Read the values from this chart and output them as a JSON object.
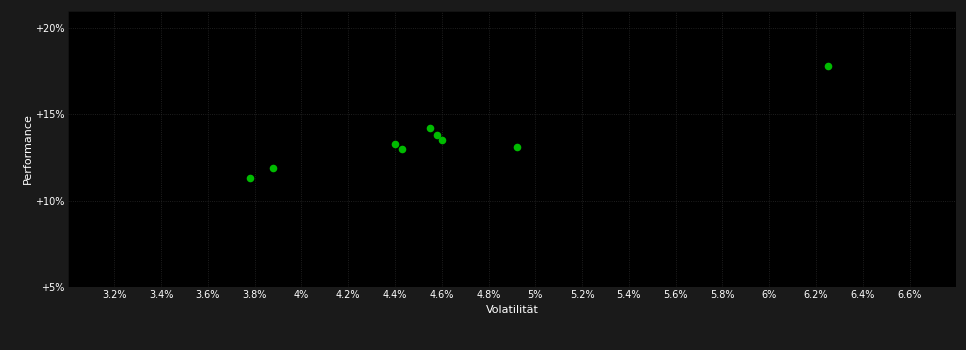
{
  "points_x": [
    3.78,
    3.88,
    4.4,
    4.43,
    4.55,
    4.58,
    4.6,
    4.92,
    6.25
  ],
  "points_y": [
    11.3,
    11.9,
    13.3,
    13.0,
    14.2,
    13.8,
    13.5,
    13.1,
    17.8
  ],
  "point_color": "#00bb00",
  "background_color": "#1a1a1a",
  "plot_bg_color": "#000000",
  "grid_color": "#333333",
  "text_color": "#ffffff",
  "xlabel": "Volatilität",
  "ylabel": "Performance",
  "xlim": [
    3.0,
    6.8
  ],
  "ylim": [
    5.0,
    21.0
  ],
  "xtick_vals": [
    3.2,
    3.4,
    3.6,
    3.8,
    4.0,
    4.2,
    4.4,
    4.6,
    4.8,
    5.0,
    5.2,
    5.4,
    5.6,
    5.8,
    6.0,
    6.2,
    6.4,
    6.6
  ],
  "ytick_vals": [
    5,
    10,
    15,
    20
  ],
  "ytick_labels": [
    "+5%",
    "+10%",
    "+15%",
    "+20%"
  ],
  "marker_size": 30,
  "grid_linestyle": ":",
  "grid_linewidth": 0.6,
  "grid_alpha": 0.8,
  "xlabel_fontsize": 8,
  "ylabel_fontsize": 8,
  "tick_fontsize": 7
}
